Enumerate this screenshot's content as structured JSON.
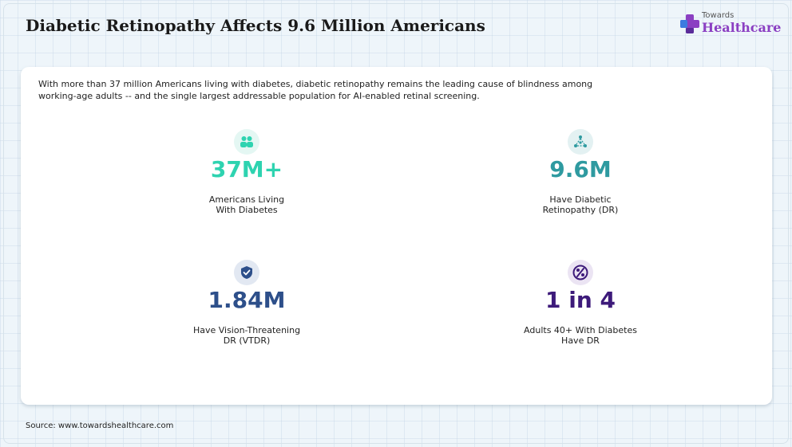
{
  "header": {
    "title": "Diabetic Retinopathy Affects 9.6 Million Americans",
    "logo_top": "Towards",
    "logo_main": "Healthcare"
  },
  "intro": "With more than 37 million Americans living with diabetes, diabetic retinopathy remains the leading cause of blindness among working-age adults -- and the single largest addressable population for AI-enabled retinal screening.",
  "stats": [
    {
      "value": "37M+",
      "label": "Americans Living\nWith Diabetes",
      "icon": "people-icon",
      "color": "#2ed3b0",
      "icon_bg": "#e4f7f3"
    },
    {
      "value": "9.6M",
      "label": "Have Diabetic\nRetinopathy (DR)",
      "icon": "eye-network-icon",
      "color": "#2e9aa0",
      "icon_bg": "#e3f1f2"
    },
    {
      "value": "1.84M",
      "label": "Have Vision-Threatening\nDR (VTDR)",
      "icon": "shield-check-icon",
      "color": "#2d4f8a",
      "icon_bg": "#e2e8f2"
    },
    {
      "value": "1 in 4",
      "label": "Adults 40+ With Diabetes\nHave DR",
      "icon": "percent-badge-icon",
      "color": "#3d1a7a",
      "icon_bg": "#ebe4f3"
    }
  ],
  "source": "Source: www.towardshealthcare.com"
}
